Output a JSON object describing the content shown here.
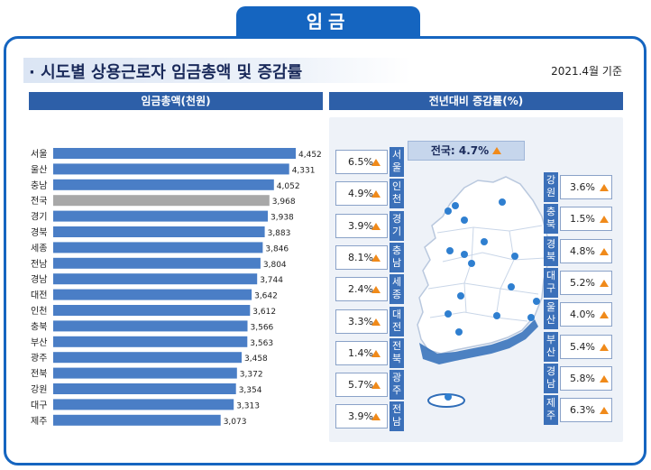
{
  "tab_label": "임금",
  "title": "· 시도별 상용근로자 임금총액 및 증감률",
  "basis_date": "2021.4월 기준",
  "left_header": "임금총액(천원)",
  "right_header": "전년대비 증감률(%)",
  "national_label": "전국: 4.7%",
  "colors": {
    "bar": "#4a7ec6",
    "bar_national": "#a8a8a8",
    "up_arrow": "#f08a1a",
    "accent": "#1565c0"
  },
  "chart_data": [
    {
      "type": "bar",
      "orientation": "horizontal",
      "title": "임금총액(천원)",
      "categories": [
        "서울",
        "울산",
        "충남",
        "전국",
        "경기",
        "경북",
        "세종",
        "전남",
        "경남",
        "대전",
        "인천",
        "충북",
        "부산",
        "광주",
        "전북",
        "강원",
        "대구",
        "제주"
      ],
      "values": [
        4452,
        4331,
        4052,
        3968,
        3938,
        3883,
        3846,
        3804,
        3744,
        3642,
        3612,
        3566,
        3563,
        3458,
        3372,
        3354,
        3313,
        3073
      ],
      "value_labels": [
        "4,452",
        "4,331",
        "4,052",
        "3,968",
        "3,938",
        "3,883",
        "3,846",
        "3,804",
        "3,744",
        "3,642",
        "3,612",
        "3,566",
        "3,563",
        "3,458",
        "3,372",
        "3,354",
        "3,313",
        "3,073"
      ],
      "highlight": "전국",
      "xlim": [
        0,
        4700
      ]
    },
    {
      "type": "table",
      "title": "전년대비 증감률(%)",
      "national": {
        "region": "전국",
        "value": 4.7
      },
      "left_column": [
        {
          "region": "서울",
          "value": 6.5,
          "label": "6.5%"
        },
        {
          "region": "인천",
          "value": 4.9,
          "label": "4.9%"
        },
        {
          "region": "경기",
          "value": 3.9,
          "label": "3.9%"
        },
        {
          "region": "충남",
          "value": 8.1,
          "label": "8.1%"
        },
        {
          "region": "세종",
          "value": 2.4,
          "label": "2.4%"
        },
        {
          "region": "대전",
          "value": 3.3,
          "label": "3.3%"
        },
        {
          "region": "전북",
          "value": 1.4,
          "label": "1.4%"
        },
        {
          "region": "광주",
          "value": 5.7,
          "label": "5.7%"
        },
        {
          "region": "전남",
          "value": 3.9,
          "label": "3.9%"
        }
      ],
      "right_column": [
        {
          "region": "강원",
          "value": 3.6,
          "label": "3.6%"
        },
        {
          "region": "충북",
          "value": 1.5,
          "label": "1.5%"
        },
        {
          "region": "경북",
          "value": 4.8,
          "label": "4.8%"
        },
        {
          "region": "대구",
          "value": 5.2,
          "label": "5.2%"
        },
        {
          "region": "울산",
          "value": 4.0,
          "label": "4.0%"
        },
        {
          "region": "부산",
          "value": 5.4,
          "label": "5.4%"
        },
        {
          "region": "경남",
          "value": 5.8,
          "label": "5.8%"
        },
        {
          "region": "제주",
          "value": 6.3,
          "label": "6.3%"
        }
      ]
    }
  ]
}
